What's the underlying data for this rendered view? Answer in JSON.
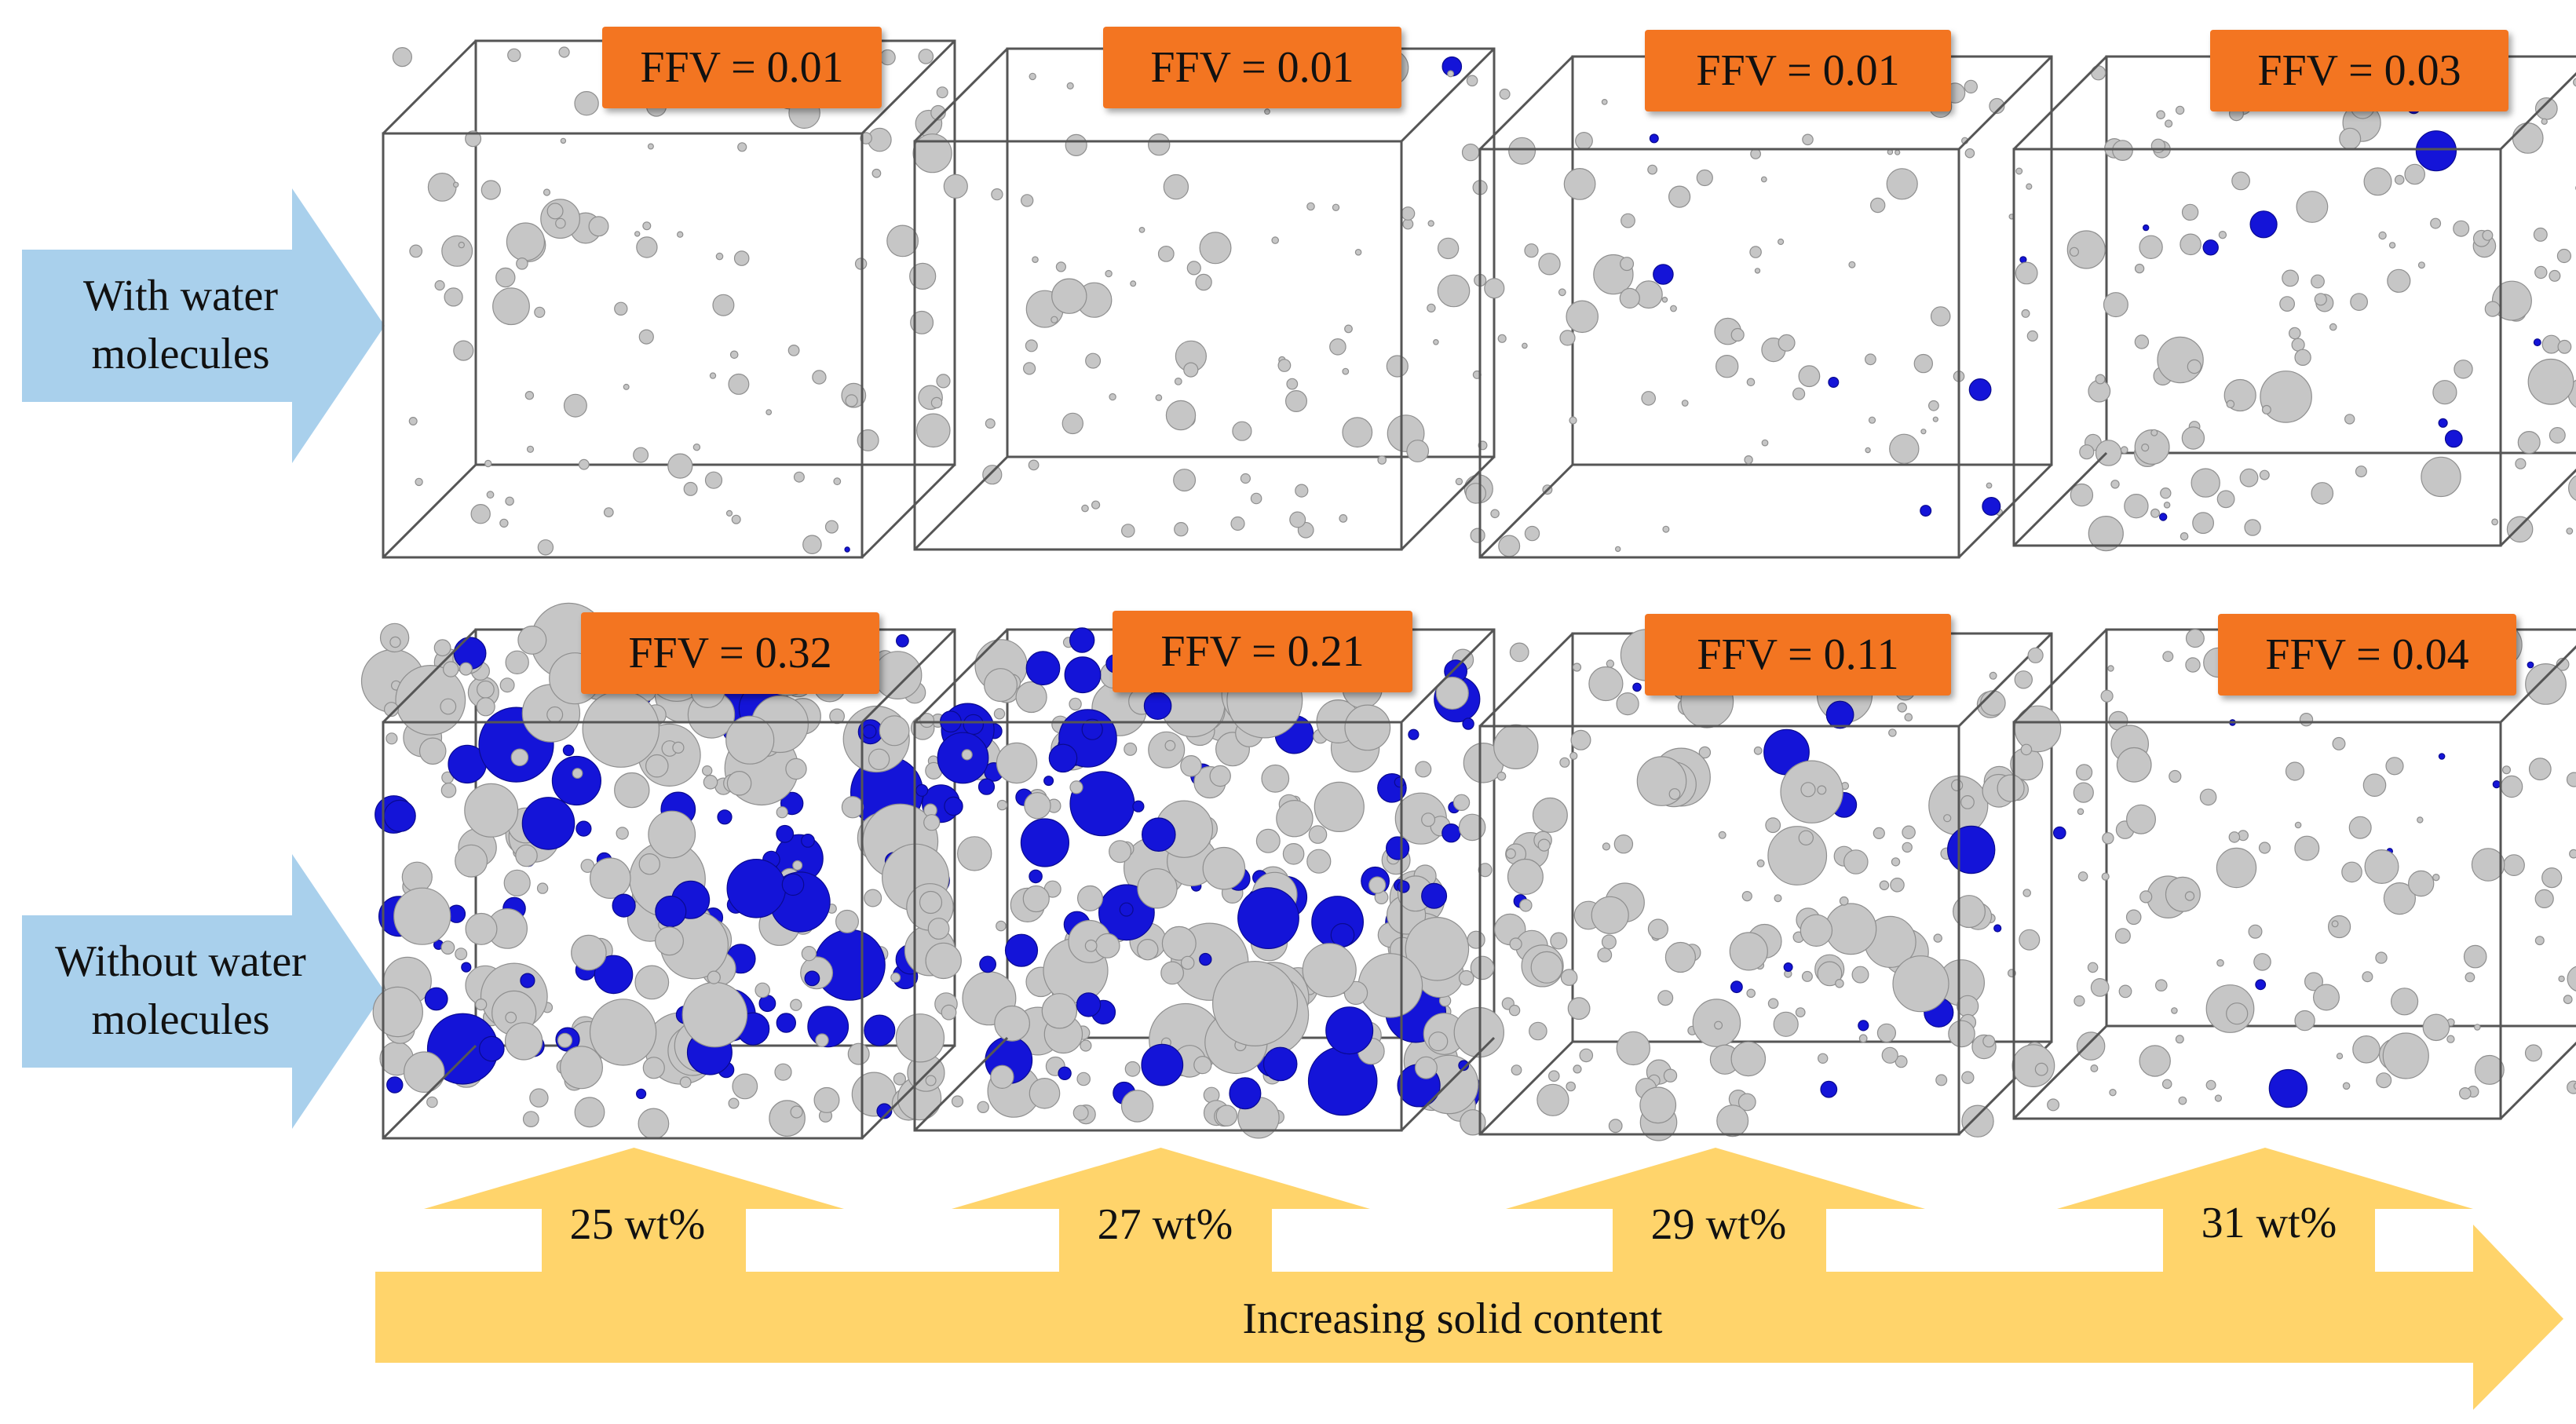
{
  "rows": [
    {
      "label_line1": "With water",
      "label_line2": "molecules",
      "ffv": [
        "FFV = 0.01",
        "FFV = 0.01",
        "FFV = 0.01",
        "FFV = 0.03"
      ]
    },
    {
      "label_line1": "Without water",
      "label_line2": "molecules",
      "ffv": [
        "FFV = 0.32",
        "FFV = 0.21",
        "FFV = 0.11",
        "FFV = 0.04"
      ]
    }
  ],
  "solid_contents": [
    "25 wt%",
    "27 wt%",
    "29 wt%",
    "31 wt%"
  ],
  "trend_label": "Increasing solid content",
  "colors": {
    "row_arrow": "#a9d0ec",
    "trend_arrow": "#ffd46b",
    "ffv_box": "#f37521",
    "pore_surface": "#c6c6c6",
    "pore_blue": "#1414d8"
  }
}
